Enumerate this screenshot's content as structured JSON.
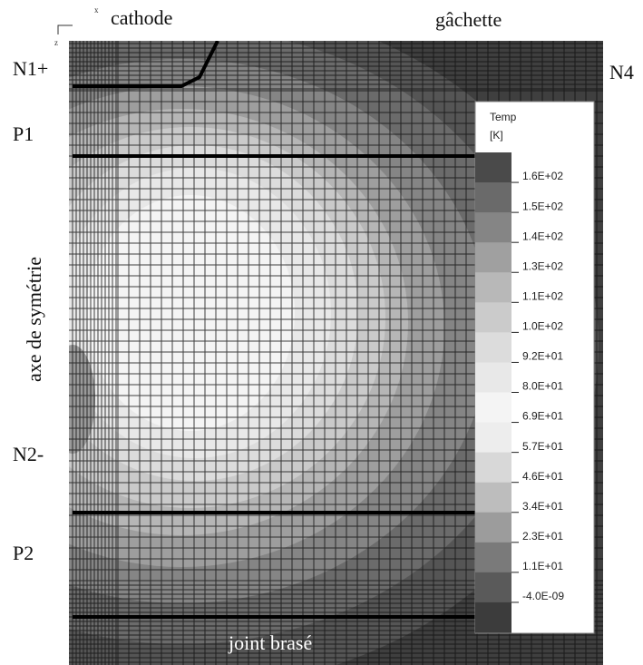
{
  "labels": {
    "cathode": "cathode",
    "gachette": "gâchette",
    "n1": "N1+",
    "n4": "N4",
    "p1": "P1",
    "axis": "axe de symétrie",
    "n2": "N2-",
    "p2": "P2",
    "joint": "joint brasé",
    "z": "z",
    "x": "x"
  },
  "legend": {
    "title": "Temp",
    "unit": "[K]",
    "labels": [
      "1.6E+02",
      "1.5E+02",
      "1.4E+02",
      "1.3E+02",
      "1.1E+02",
      "1.0E+02",
      "9.2E+01",
      "8.0E+01",
      "6.9E+01",
      "5.7E+01",
      "4.6E+01",
      "3.4E+01",
      "2.3E+01",
      "1.1E+01",
      "-4.0E-09"
    ],
    "colors": [
      "#4a4a4a",
      "#6a6a6a",
      "#858585",
      "#a0a0a0",
      "#b8b8b8",
      "#cbcbcb",
      "#dcdcdc",
      "#e8e8e8",
      "#f4f4f4",
      "#ededed",
      "#d8d8d8",
      "#bdbdbd",
      "#9c9c9c",
      "#7a7a7a",
      "#5a5a5a",
      "#3c3c3c"
    ]
  }
}
